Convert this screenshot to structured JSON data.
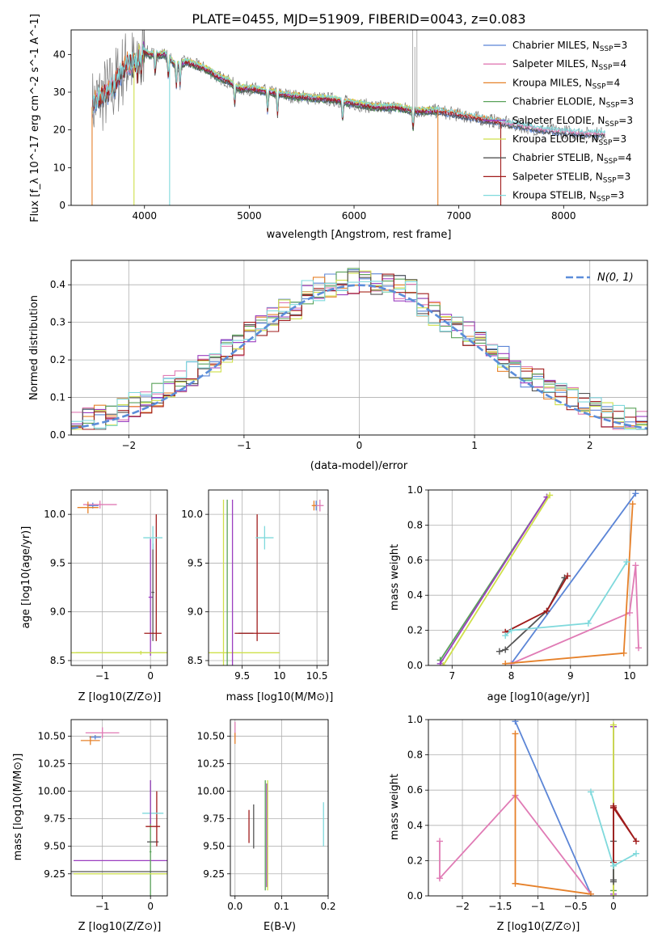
{
  "figure_title": "PLATE=0455, MJD=51909, FIBERID=0043, z=0.083",
  "colors": {
    "Chabrier MILES": "#5b85d6",
    "Salpeter MILES": "#e07bb5",
    "Kroupa MILES": "#e6812a",
    "Chabrier ELODIE": "#5aa25a",
    "Salpeter ELODIE": "#9b3fc0",
    "Kroupa ELODIE": "#cfe04a",
    "Chabrier STELIB": "#555555",
    "Salpeter STELIB": "#a01c1c",
    "Kroupa STELIB": "#7fd9dc"
  },
  "chart_data": [
    {
      "id": "spectrum",
      "type": "line",
      "title": "PLATE=0455, MJD=51909, FIBERID=0043, z=0.083",
      "xlabel": "wavelength [Angstrom, rest frame]",
      "ylabel": "Flux [f_λ 10^-17 erg cm^-2 s^-1 A^-1]",
      "xlim": [
        3300,
        8800
      ],
      "ylim": [
        0,
        46.5
      ],
      "xticks": [
        4000,
        5000,
        6000,
        7000,
        8000
      ],
      "yticks": [
        0,
        10,
        20,
        30,
        40
      ],
      "grid": false,
      "legend": "top-right",
      "legend_entries": [
        {
          "name": "Chabrier MILES",
          "nssp": "3"
        },
        {
          "name": "Salpeter MILES",
          "nssp": "4"
        },
        {
          "name": "Kroupa MILES",
          "nssp": "4"
        },
        {
          "name": "Chabrier ELODIE",
          "nssp": "3"
        },
        {
          "name": "Salpeter ELODIE",
          "nssp": "3"
        },
        {
          "name": "Kroupa ELODIE",
          "nssp": "3"
        },
        {
          "name": "Chabrier STELIB",
          "nssp": "4"
        },
        {
          "name": "Salpeter STELIB",
          "nssp": "3"
        },
        {
          "name": "Kroupa STELIB",
          "nssp": "3"
        }
      ],
      "series": [
        {
          "name": "Chabrier MILES",
          "x": [
            3500,
            8400
          ]
        },
        {
          "name": "Salpeter MILES",
          "x": [
            3500,
            8400
          ]
        },
        {
          "name": "Kroupa MILES",
          "x": [
            3500,
            7400
          ]
        },
        {
          "name": "Chabrier ELODIE",
          "x": [
            3900,
            6800
          ]
        },
        {
          "name": "Salpeter ELODIE",
          "x": [
            3900,
            6800
          ]
        },
        {
          "name": "Kroupa ELODIE",
          "x": [
            3900,
            6800
          ]
        },
        {
          "name": "Chabrier STELIB",
          "x": [
            3500,
            8400
          ]
        },
        {
          "name": "Salpeter STELIB",
          "x": [
            3500,
            7400
          ]
        },
        {
          "name": "Kroupa STELIB",
          "x": [
            3500,
            8400
          ]
        }
      ],
      "continuum": {
        "x": [
          3500,
          3550,
          3650,
          3700,
          3750,
          3800,
          3850,
          3900,
          3950,
          4000,
          4050,
          4100,
          4200,
          4300,
          4400,
          4500,
          4600,
          4700,
          4800,
          4900,
          5000,
          5200,
          5400,
          5600,
          5800,
          6000,
          6200,
          6400,
          6600,
          6800,
          7000,
          7200,
          7400,
          7600,
          7800,
          8000,
          8200,
          8400
        ],
        "y": [
          26,
          28,
          30,
          31,
          34,
          36,
          38,
          37,
          40,
          41,
          40,
          40,
          40,
          37,
          38,
          37,
          36,
          34,
          33,
          31,
          31,
          30,
          29,
          28.5,
          28,
          27,
          26,
          26,
          25,
          25,
          24,
          23,
          22,
          21,
          20,
          19.5,
          19,
          19
        ]
      },
      "data_spikes": [
        {
          "x": 6560,
          "y": 46.5
        },
        {
          "x": 6600,
          "y": 46.5
        },
        {
          "x": 6580,
          "y": 42
        }
      ],
      "template_drops": [
        {
          "x": 3500,
          "series": "Kroupa MILES"
        },
        {
          "x": 3900,
          "series": "Kroupa ELODIE"
        },
        {
          "x": 4240,
          "series": "Kroupa STELIB"
        },
        {
          "x": 6800,
          "series": "Kroupa MILES"
        },
        {
          "x": 7400,
          "series": "Salpeter STELIB"
        }
      ]
    },
    {
      "id": "residual-histogram",
      "type": "line",
      "xlabel": "(data-model)/error",
      "ylabel": "Normed distribution",
      "xlim": [
        -2.5,
        2.5
      ],
      "ylim": [
        0,
        0.465
      ],
      "xticks": [
        -2,
        -1,
        0,
        1,
        2
      ],
      "yticks": [
        0.0,
        0.1,
        0.2,
        0.3,
        0.4
      ],
      "grid": true,
      "legend": "top-right",
      "gaussian_label": "N(0, 1)",
      "bin_width": 0.1
    },
    {
      "id": "age-vs-z",
      "type": "scatter",
      "xlabel": "Z [log10(Z/Z⊙)]",
      "ylabel": "age [log10(age/yr)]",
      "xlim": [
        -1.65,
        0.35
      ],
      "ylim": [
        8.45,
        10.25
      ],
      "xticks": [
        -1,
        0
      ],
      "yticks": [
        8.5,
        9.0,
        9.5,
        10.0
      ],
      "grid": true,
      "points": [
        {
          "series": "Chabrier MILES",
          "x": -1.2,
          "y": 10.09,
          "xerr": 0.12,
          "yerr": 0.03
        },
        {
          "series": "Salpeter MILES",
          "x": -1.05,
          "y": 10.1,
          "xerr": 0.35,
          "yerr": 0.04
        },
        {
          "series": "Kroupa MILES",
          "x": -1.3,
          "y": 10.07,
          "xerr": 0.22,
          "yerr": 0.06
        },
        {
          "series": "Chabrier ELODIE",
          "x": 0.0,
          "y": 8.58,
          "xerr": 1.55,
          "yerr": 0.01
        },
        {
          "series": "Salpeter ELODIE",
          "x": 0.0,
          "y": 9.15,
          "xerr": 0.04,
          "yerr": 0.6
        },
        {
          "series": "Kroupa ELODIE",
          "x": -0.2,
          "y": 8.58,
          "xerr": 1.55,
          "yerr": 0.02
        },
        {
          "series": "Chabrier STELIB",
          "x": 0.05,
          "y": 9.2,
          "xerr": 0.03,
          "yerr": 0.5
        },
        {
          "series": "Salpeter STELIB",
          "x": 0.05,
          "y": 8.78,
          "xerr": 0.18,
          "yerr": 0.0
        },
        {
          "series": "Salpeter STELIB",
          "x": 0.12,
          "y": 9.35,
          "xerr": 0.0,
          "yerr": 0.65
        },
        {
          "series": "Kroupa STELIB",
          "x": 0.05,
          "y": 9.76,
          "xerr": 0.2,
          "yerr": 0.12
        }
      ]
    },
    {
      "id": "age-vs-mass",
      "type": "scatter",
      "xlabel": "mass [log10(M/M⊙)]",
      "ylabel": "",
      "xlim": [
        9.05,
        10.65
      ],
      "ylim": [
        8.45,
        10.25
      ],
      "xticks": [
        9.5,
        10.0,
        10.5
      ],
      "yticks": [
        8.5,
        9.0,
        9.5,
        10.0
      ],
      "grid": true,
      "points": [
        {
          "series": "Chabrier MILES",
          "x": 10.49,
          "y": 10.09,
          "xerr": 0.02,
          "yerr": 0.05
        },
        {
          "series": "Salpeter MILES",
          "x": 10.54,
          "y": 10.09,
          "xerr": 0.05,
          "yerr": 0.06
        },
        {
          "series": "Kroupa MILES",
          "x": 10.46,
          "y": 10.09,
          "xerr": 0.03,
          "yerr": 0.05
        },
        {
          "series": "Kroupa ELODIE",
          "x": 9.5,
          "y": 8.58,
          "xerr": 0.5,
          "yerr": 0.0
        },
        {
          "series": "Chabrier ELODIE",
          "x": 9.3,
          "y": 9.3,
          "xerr": 0.0,
          "yerr": 0.85
        },
        {
          "series": "Salpeter ELODIE",
          "x": 9.37,
          "y": 9.3,
          "xerr": 0.0,
          "yerr": 0.85
        },
        {
          "series": "Chabrier STELIB",
          "x": 9.55,
          "y": 8.78,
          "xerr": 0.1,
          "yerr": 0.0
        },
        {
          "series": "Salpeter STELIB",
          "x": 9.7,
          "y": 8.78,
          "xerr": 0.3,
          "yerr": 0.0
        },
        {
          "series": "Salpeter STELIB",
          "x": 9.7,
          "y": 9.35,
          "xerr": 0.0,
          "yerr": 0.65
        },
        {
          "series": "Kroupa STELIB",
          "x": 9.8,
          "y": 9.76,
          "xerr": 0.12,
          "yerr": 0.12
        },
        {
          "series": "Kroupa ELODIE",
          "x": 9.25,
          "y": 9.3,
          "xerr": 0.0,
          "yerr": 0.85
        }
      ]
    },
    {
      "id": "mass-weight-vs-age",
      "type": "line",
      "xlabel": "age [log10(age/yr)]",
      "ylabel": "mass weight",
      "xlim": [
        6.6,
        10.3
      ],
      "ylim": [
        0,
        1.0
      ],
      "xticks": [
        7,
        8,
        9,
        10
      ],
      "yticks": [
        0.0,
        0.2,
        0.4,
        0.6,
        0.8,
        1.0
      ],
      "grid": true,
      "series": [
        {
          "name": "Chabrier MILES",
          "x": [
            8.0,
            10.1
          ],
          "y": [
            0.01,
            0.98
          ]
        },
        {
          "name": "Salpeter MILES",
          "x": [
            8.0,
            10.0,
            10.1,
            10.15
          ],
          "y": [
            0.01,
            0.3,
            0.57,
            0.1
          ]
        },
        {
          "name": "Kroupa MILES",
          "x": [
            7.9,
            9.9,
            10.05
          ],
          "y": [
            0.01,
            0.07,
            0.92
          ]
        },
        {
          "name": "Chabrier ELODIE",
          "x": [
            6.8,
            8.6
          ],
          "y": [
            0.03,
            0.96
          ]
        },
        {
          "name": "Salpeter ELODIE",
          "x": [
            6.8,
            8.6
          ],
          "y": [
            0.01,
            0.96
          ]
        },
        {
          "name": "Kroupa ELODIE",
          "x": [
            6.85,
            8.65
          ],
          "y": [
            0.0,
            0.97
          ]
        },
        {
          "name": "Chabrier STELIB",
          "x": [
            7.8,
            7.9,
            8.6,
            8.9
          ],
          "y": [
            0.08,
            0.09,
            0.31,
            0.5
          ]
        },
        {
          "name": "Salpeter STELIB",
          "x": [
            7.9,
            8.6,
            8.95
          ],
          "y": [
            0.19,
            0.31,
            0.51
          ]
        },
        {
          "name": "Kroupa STELIB",
          "x": [
            7.9,
            8.0,
            9.3,
            9.95
          ],
          "y": [
            0.17,
            0.2,
            0.24,
            0.59
          ]
        }
      ]
    },
    {
      "id": "mass-vs-z",
      "type": "scatter",
      "xlabel": "Z [log10(Z/Z⊙)]",
      "ylabel": "mass [log10(M/M⊙)]",
      "xlim": [
        -1.65,
        0.35
      ],
      "ylim": [
        9.05,
        10.65
      ],
      "xticks": [
        -1,
        0
      ],
      "yticks": [
        9.25,
        9.5,
        9.75,
        10.0,
        10.25,
        10.5
      ],
      "grid": true,
      "points": [
        {
          "series": "Chabrier MILES",
          "x": -1.15,
          "y": 10.49,
          "xerr": 0.12,
          "yerr": 0.02
        },
        {
          "series": "Salpeter MILES",
          "x": -1.0,
          "y": 10.53,
          "xerr": 0.35,
          "yerr": 0.05
        },
        {
          "series": "Kroupa MILES",
          "x": -1.25,
          "y": 10.46,
          "xerr": 0.2,
          "yerr": 0.04
        },
        {
          "series": "Salpeter ELODIE",
          "x": -0.5,
          "y": 9.37,
          "xerr": 1.1,
          "yerr": 0.0
        },
        {
          "series": "Chabrier ELODIE",
          "x": 0.0,
          "y": 9.45,
          "xerr": 0.02,
          "yerr": 0.65
        },
        {
          "series": "Kroupa ELODIE",
          "x": -0.5,
          "y": 9.25,
          "xerr": 1.1,
          "yerr": 0.0
        },
        {
          "series": "Chabrier STELIB",
          "x": 0.05,
          "y": 9.54,
          "xerr": 0.12,
          "yerr": 0.0
        },
        {
          "series": "Chabrier STELIB",
          "x": -0.6,
          "y": 9.27,
          "xerr": 1.1,
          "yerr": 0.0
        },
        {
          "series": "Salpeter STELIB",
          "x": 0.05,
          "y": 9.68,
          "xerr": 0.15,
          "yerr": 0.0
        },
        {
          "series": "Salpeter STELIB",
          "x": 0.13,
          "y": 9.75,
          "xerr": 0.0,
          "yerr": 0.25
        },
        {
          "series": "Kroupa STELIB",
          "x": 0.05,
          "y": 9.8,
          "xerr": 0.22,
          "yerr": 0.0
        },
        {
          "series": "Salpeter ELODIE",
          "x": 0.0,
          "y": 9.9,
          "xerr": 0.0,
          "yerr": 0.2
        }
      ]
    },
    {
      "id": "ebv",
      "type": "scatter",
      "xlabel": "E(B-V)",
      "ylabel": "",
      "xlim": [
        -0.01,
        0.2
      ],
      "ylim": [
        9.05,
        10.65
      ],
      "xticks": [
        0.0,
        0.1,
        0.2
      ],
      "yticks": [
        9.25,
        9.5,
        9.75,
        10.0,
        10.25,
        10.5
      ],
      "grid": true,
      "points": [
        {
          "series": "Salpeter MILES",
          "x": 0.0,
          "y": 10.55,
          "xerr": 0.0,
          "yerr": 0.08
        },
        {
          "series": "Kroupa MILES",
          "x": 0.0,
          "y": 10.48,
          "xerr": 0.0,
          "yerr": 0.05
        },
        {
          "series": "Salpeter STELIB",
          "x": 0.03,
          "y": 9.68,
          "xerr": 0.0,
          "yerr": 0.15
        },
        {
          "series": "Chabrier STELIB",
          "x": 0.04,
          "y": 9.68,
          "xerr": 0.0,
          "yerr": 0.2
        },
        {
          "series": "Chabrier ELODIE",
          "x": 0.065,
          "y": 9.6,
          "xerr": 0.0,
          "yerr": 0.5
        },
        {
          "series": "Salpeter ELODIE",
          "x": 0.068,
          "y": 9.6,
          "xerr": 0.0,
          "yerr": 0.47
        },
        {
          "series": "Kroupa ELODIE",
          "x": 0.07,
          "y": 9.6,
          "xerr": 0.0,
          "yerr": 0.5
        },
        {
          "series": "Kroupa STELIB",
          "x": 0.19,
          "y": 9.7,
          "xerr": 0.0,
          "yerr": 0.2
        }
      ]
    },
    {
      "id": "mass-weight-vs-z",
      "type": "line",
      "xlabel": "Z [log10(Z/Z⊙)]",
      "ylabel": "mass weight",
      "xlim": [
        -2.45,
        0.45
      ],
      "ylim": [
        0,
        1.0
      ],
      "xticks": [
        -2.0,
        -1.5,
        -1.0,
        -0.5,
        0.0
      ],
      "yticks": [
        0.0,
        0.2,
        0.4,
        0.6,
        0.8,
        1.0
      ],
      "grid": true,
      "series": [
        {
          "name": "Chabrier MILES",
          "x": [
            -1.3,
            -0.3
          ],
          "y": [
            0.99,
            0.01
          ]
        },
        {
          "name": "Salpeter MILES",
          "x": [
            -2.3,
            -2.3,
            -1.3,
            -0.3
          ],
          "y": [
            0.31,
            0.1,
            0.57,
            0.01
          ]
        },
        {
          "name": "Kroupa MILES",
          "x": [
            -1.3,
            -1.3,
            -0.3
          ],
          "y": [
            0.92,
            0.07,
            0.01
          ]
        },
        {
          "name": "Chabrier ELODIE",
          "x": [
            0.0,
            0.0
          ],
          "y": [
            0.03,
            0.96
          ]
        },
        {
          "name": "Salpeter ELODIE",
          "x": [
            0.0,
            0.0
          ],
          "y": [
            0.01,
            0.96
          ]
        },
        {
          "name": "Kroupa ELODIE",
          "x": [
            0.0,
            0.0
          ],
          "y": [
            0.0,
            0.97
          ]
        },
        {
          "name": "Chabrier STELIB",
          "x": [
            0.0,
            0.0,
            0.0,
            0.0
          ],
          "y": [
            0.08,
            0.09,
            0.31,
            0.5
          ]
        },
        {
          "name": "Salpeter STELIB",
          "x": [
            0.0,
            0.0,
            0.3,
            0.0
          ],
          "y": [
            0.19,
            0.5,
            0.31,
            0.51
          ]
        },
        {
          "name": "Kroupa STELIB",
          "x": [
            -0.3,
            0.0,
            0.3
          ],
          "y": [
            0.59,
            0.17,
            0.24
          ]
        }
      ]
    }
  ]
}
